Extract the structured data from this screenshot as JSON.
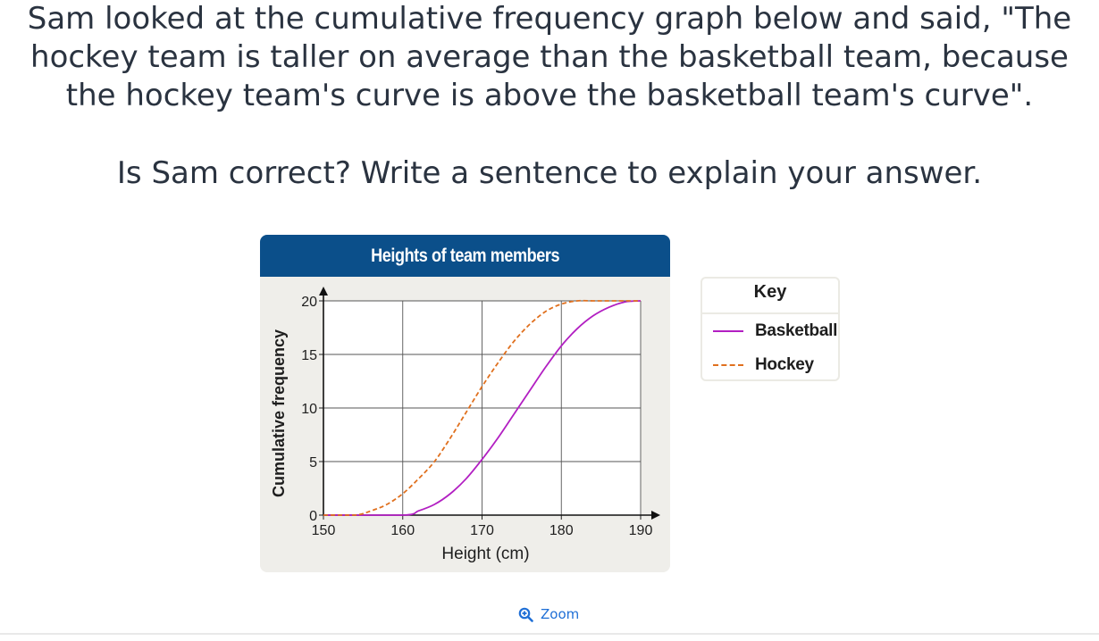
{
  "question": {
    "lines": [
      "Sam looked at the cumulative frequency graph below and said, \"The",
      "hockey team is taller on average than the basketball team, because",
      "the hockey team's curve is above the basketball team's curve\"."
    ],
    "prompt": "Is Sam correct? Write a sentence to explain your answer."
  },
  "figure": {
    "header_color": "#0b4f8a",
    "background": "#efeeea"
  },
  "key": {
    "title": "Key",
    "items": [
      {
        "label": "Basketball",
        "color": "#b21fc2",
        "style": "solid"
      },
      {
        "label": "Hockey",
        "color": "#e0701e",
        "style": "dashed"
      }
    ]
  },
  "zoom": {
    "label": "Zoom",
    "icon": "zoom-in-icon"
  },
  "chart_data": {
    "type": "line",
    "title": "Heights of team members",
    "xlabel": "Height (cm)",
    "ylabel": "Cumulative frequency",
    "xlim": [
      150,
      190
    ],
    "ylim": [
      0,
      20
    ],
    "xticks": [
      "150",
      "160",
      "170",
      "180",
      "190"
    ],
    "yticks": [
      "0",
      "5",
      "10",
      "15",
      "20"
    ],
    "grid": true,
    "legend": "right",
    "series": [
      {
        "name": "Basketball",
        "color": "#b21fc2",
        "style": "solid",
        "x": [
          150,
          160,
          162,
          164,
          166,
          168,
          170,
          172,
          174,
          176,
          178,
          180,
          182,
          184,
          186,
          188,
          190
        ],
        "y": [
          0,
          0,
          0.4,
          1.0,
          2.0,
          3.4,
          5.2,
          7.2,
          9.4,
          11.6,
          13.8,
          15.8,
          17.4,
          18.6,
          19.4,
          19.9,
          20
        ]
      },
      {
        "name": "Hockey",
        "color": "#e0701e",
        "style": "dashed",
        "x": [
          150,
          154,
          156,
          158,
          160,
          162,
          164,
          166,
          168,
          170,
          172,
          174,
          176,
          178,
          180,
          182,
          184,
          186,
          190
        ],
        "y": [
          0,
          0,
          0.4,
          1.0,
          2.0,
          3.4,
          5.0,
          7.2,
          9.6,
          12.0,
          14.2,
          16.2,
          17.8,
          19.0,
          19.7,
          20,
          20,
          20,
          20
        ]
      }
    ]
  }
}
